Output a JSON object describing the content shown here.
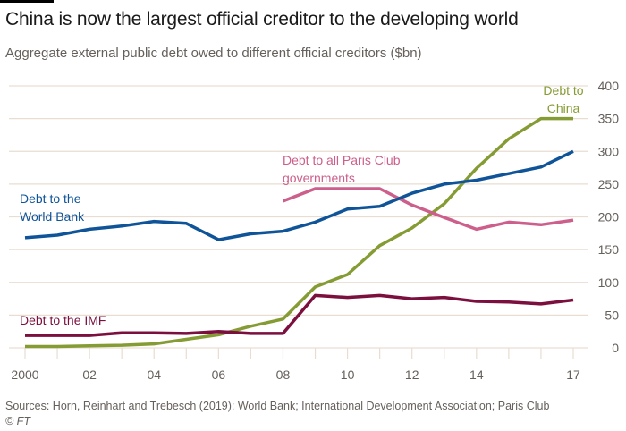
{
  "header": {
    "title": "China is now the largest official creditor to the developing world",
    "subtitle": "Aggregate external public debt owed to different official creditors ($bn)"
  },
  "footer": {
    "sources": "Sources: Horn, Reinhart and Trebesch (2019); World Bank; International Development Association; Paris Club",
    "copyright": "© FT"
  },
  "chart_data": {
    "type": "line",
    "title": "China is now the largest official creditor to the developing world",
    "subtitle": "Aggregate external public debt owed to different official creditors ($bn)",
    "xlabel": "",
    "ylabel": "$bn",
    "x": [
      2000,
      2001,
      2002,
      2003,
      2004,
      2005,
      2006,
      2007,
      2008,
      2009,
      2010,
      2011,
      2012,
      2013,
      2014,
      2015,
      2016,
      2017
    ],
    "xlim": [
      2000,
      2017
    ],
    "ylim": [
      0,
      400
    ],
    "x_ticks": [
      2000,
      2002,
      2004,
      2006,
      2008,
      2010,
      2012,
      2014,
      2017
    ],
    "x_tick_labels": [
      "2000",
      "02",
      "04",
      "06",
      "08",
      "10",
      "12",
      "14",
      "17"
    ],
    "y_ticks": [
      0,
      50,
      100,
      150,
      200,
      250,
      300,
      350,
      400
    ],
    "y_tick_labels": [
      "0",
      "50",
      "100",
      "150",
      "200",
      "250",
      "300",
      "350",
      "400"
    ],
    "y_axis_side": "right",
    "grid": true,
    "series": [
      {
        "name": "Debt to the World Bank",
        "label_lines": [
          "Debt to the",
          "World Bank"
        ],
        "color": "#0f5499",
        "values": [
          168,
          172,
          181,
          186,
          193,
          190,
          165,
          174,
          178,
          192,
          212,
          216,
          236,
          250,
          256,
          266,
          276,
          300
        ]
      },
      {
        "name": "Debt to all Paris Club governments",
        "label_lines": [
          "Debt to all Paris Club",
          "governments"
        ],
        "color": "#cc5f8b",
        "values": [
          null,
          null,
          null,
          null,
          null,
          null,
          null,
          null,
          224,
          243,
          243,
          243,
          218,
          199,
          181,
          192,
          188,
          195
        ]
      },
      {
        "name": "Debt to China",
        "label_lines": [
          "Debt to",
          "China"
        ],
        "color": "#859c34",
        "values": [
          2,
          2,
          3,
          4,
          6,
          13,
          20,
          33,
          44,
          93,
          112,
          156,
          183,
          220,
          274,
          319,
          350,
          350
        ]
      },
      {
        "name": "Debt to the IMF",
        "label_lines": [
          "Debt to the IMF"
        ],
        "color": "#7b0f3e",
        "values": [
          19,
          19,
          19,
          23,
          23,
          22,
          25,
          22,
          22,
          80,
          77,
          80,
          75,
          77,
          71,
          70,
          67,
          73
        ]
      }
    ]
  }
}
